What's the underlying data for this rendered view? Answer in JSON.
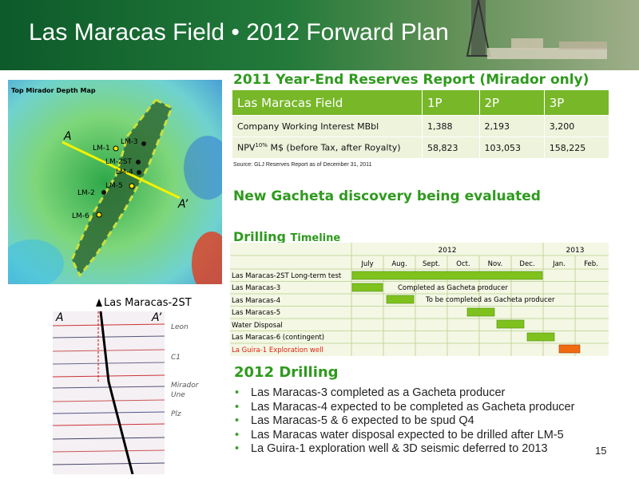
{
  "header": {
    "title": "Las Maracas Field • 2012 Forward Plan"
  },
  "map": {
    "title": "Top Mirador Depth Map",
    "section_start": "A",
    "section_end": "A’",
    "wells": [
      "LM-1",
      "LM-2",
      "LM-2ST",
      "LM-3",
      "LM-4",
      "LM-5",
      "LM-6"
    ]
  },
  "cross_section": {
    "well": "Las Maracas-2ST",
    "start": "A",
    "end": "A’",
    "horizons": [
      "Leon",
      "C1",
      "Mirador",
      "Une",
      "Plz"
    ]
  },
  "reserves": {
    "heading": "2011 Year-End Reserves Report (Mirador only)",
    "columns": [
      "Las Maracas Field",
      "1P",
      "2P",
      "3P"
    ],
    "rows": [
      [
        "Company Working Interest MBbl",
        "1,388",
        "2,193",
        "3,200"
      ],
      [
        {
          "text": "NPV",
          "superscript": "10%",
          "suffix": " M$ (before Tax, after Royalty)"
        },
        "58,823",
        "103,053",
        "158,225"
      ]
    ],
    "source": "Source: GLJ Reserves Report as of December 31, 2011"
  },
  "discovery": "New Gacheta discovery being evaluated",
  "timeline": {
    "heading": "Drilling",
    "subheading": "Timeline",
    "years": [
      "2012",
      "2013"
    ],
    "months": [
      "July",
      "Aug.",
      "Sept.",
      "Oct.",
      "Nov.",
      "Dec.",
      "Jan.",
      "Feb."
    ],
    "tasks": [
      "Las Maracas-2ST Long-term test",
      "Las Maracas-3",
      "Las Maracas-4",
      "Las Maracas-5",
      "Water Disposal",
      "Las Maracas-6 (contingent)",
      "La Guira-1 Exploration well"
    ],
    "notes": [
      "Completed as Gacheta producer",
      "To be completed as Gacheta producer"
    ]
  },
  "drilling": {
    "heading": "2012 Drilling",
    "bullets": [
      "Las Maracas-3 completed as a Gacheta producer",
      "Las Maracas-4 expected to be completed as Gacheta producer",
      "Las Maracas-5 & 6 expected to be spud Q4",
      "Las Maracas water disposal expected to be drilled after LM-5",
      "La Guira-1 exploration well & 3D seismic deferred to 2013"
    ]
  },
  "page_number": 15
}
